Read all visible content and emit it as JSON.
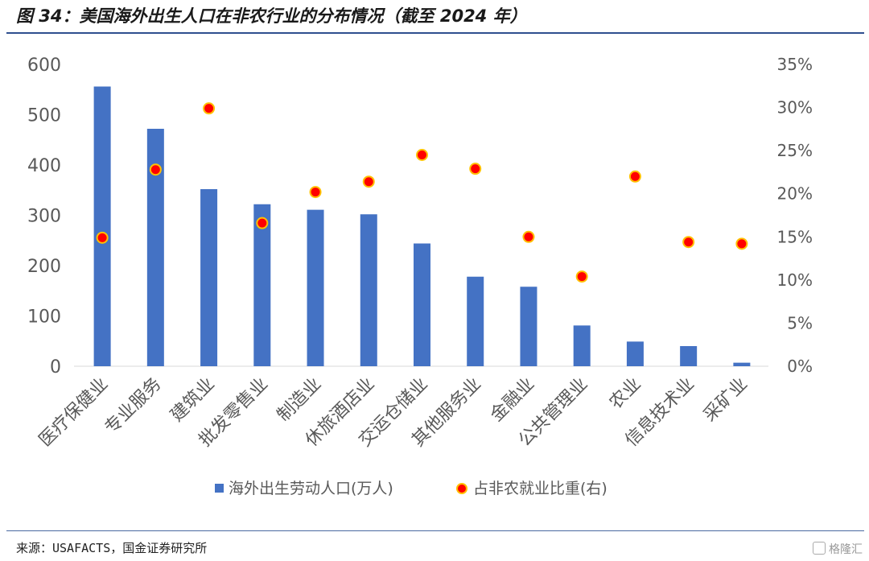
{
  "title": "图 34：美国海外出生人口在非农行业的分布情况（截至 2024 年）",
  "source": "来源：USAFACTS，国金证券研究所",
  "watermark": "格隆汇",
  "colors": {
    "bar": "#4472C4",
    "dot_fill": "#FF0000",
    "dot_ring": "#FFC000",
    "axis_text": "#595959"
  },
  "chart_data": {
    "type": "bar",
    "categories": [
      "医疗保健业",
      "专业服务",
      "建筑业",
      "批发零售业",
      "制造业",
      "休旅酒店业",
      "交运仓储业",
      "其他服务业",
      "金融业",
      "公共管理业",
      "农业",
      "信息技术业",
      "采矿业"
    ],
    "series": [
      {
        "name": "海外出生劳动人口(万人)",
        "type": "bar",
        "axis": "left",
        "values": [
          556,
          472,
          352,
          322,
          311,
          302,
          244,
          178,
          158,
          81,
          49,
          40,
          7
        ]
      },
      {
        "name": "占非农就业比重(右)",
        "type": "scatter",
        "axis": "right",
        "values": [
          14.9,
          22.8,
          29.9,
          16.6,
          20.2,
          21.4,
          24.5,
          22.9,
          15.0,
          10.4,
          22.0,
          14.4,
          14.2
        ]
      }
    ],
    "ylim_left": [
      0,
      600
    ],
    "yticks_left": [
      "0",
      "100",
      "200",
      "300",
      "400",
      "500",
      "600"
    ],
    "ylim_right": [
      0,
      35
    ],
    "yticks_right": [
      "0%",
      "5%",
      "10%",
      "15%",
      "20%",
      "25%",
      "30%",
      "35%"
    ],
    "grid": false,
    "legend_position": "bottom"
  }
}
